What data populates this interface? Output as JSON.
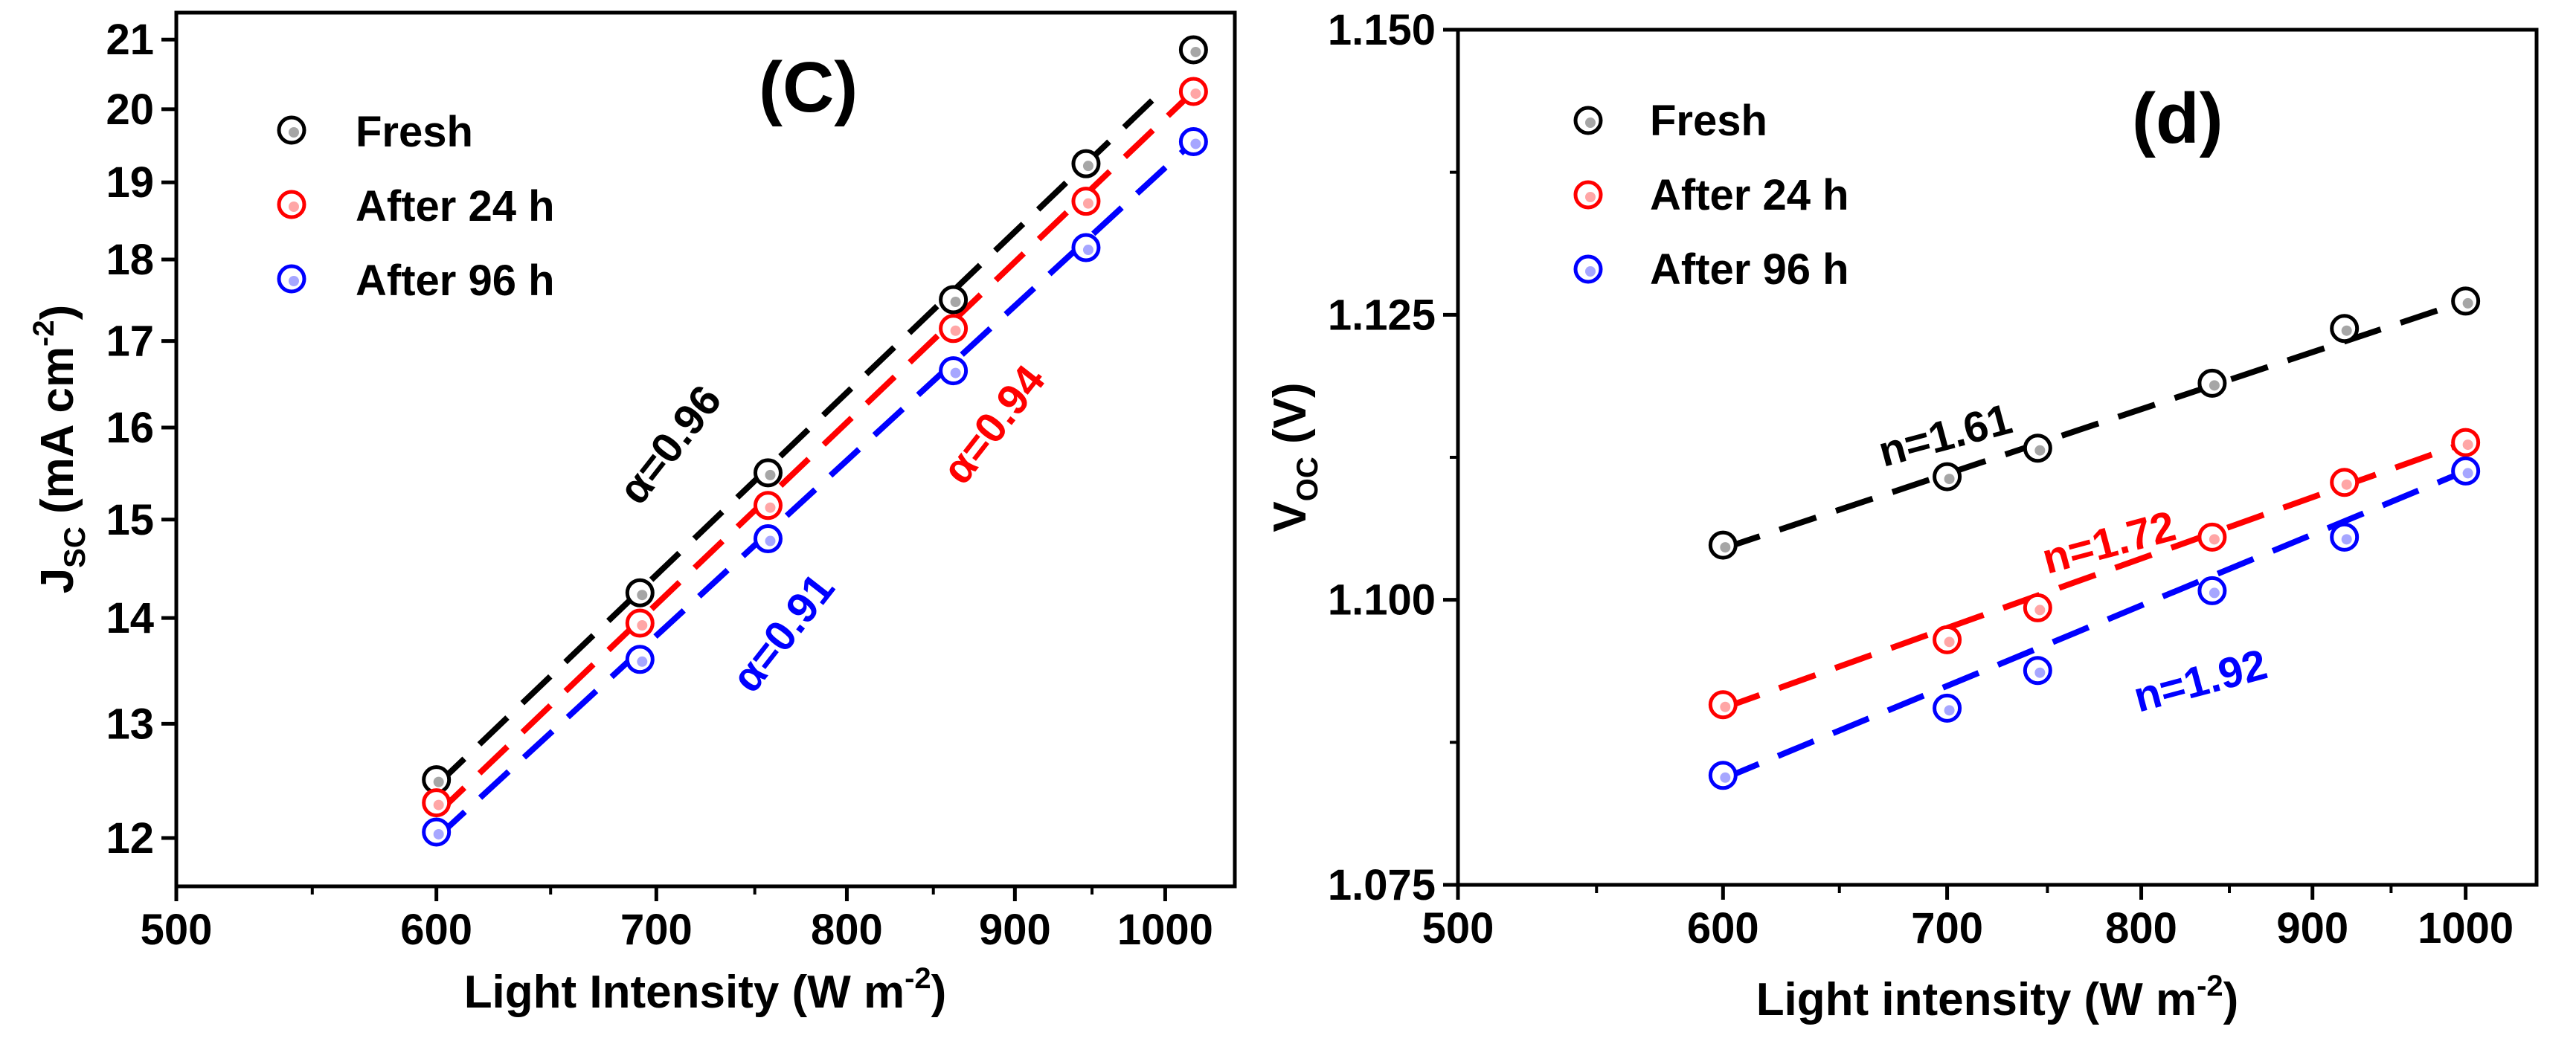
{
  "chart_data": [
    {
      "type": "scatter",
      "panel_label": "(C)",
      "xlabel": {
        "text": "Light Intensity (W m",
        "sup": "-2",
        "tail": ")"
      },
      "ylabel": {
        "main": "J",
        "sub": "SC",
        "text": " (mA cm",
        "sup": "-2",
        "tail": ")"
      },
      "xscale": "log",
      "yscale": "log",
      "xlim": [
        500,
        1050
      ],
      "ylim": [
        11.6,
        21.4
      ],
      "xticks": [
        500,
        600,
        700,
        800,
        900,
        1000
      ],
      "yticks": [
        12,
        13,
        14,
        15,
        16,
        17,
        18,
        19,
        20,
        21
      ],
      "legend_position": "top-left",
      "series": [
        {
          "name": "Fresh",
          "color": "#000000",
          "x": [
            600,
            692,
            757,
            862,
            946,
            1020
          ],
          "y": [
            12.5,
            14.25,
            15.5,
            17.5,
            19.25,
            20.85
          ],
          "fit": {
            "x": [
              600,
              1000
            ],
            "y": [
              12.45,
              20.3
            ]
          }
        },
        {
          "name": "After 24 h",
          "color": "#ff0000",
          "x": [
            600,
            692,
            757,
            862,
            946,
            1020
          ],
          "y": [
            12.3,
            13.95,
            15.15,
            17.15,
            18.75,
            20.25
          ],
          "fit": {
            "x": [
              600,
              1020
            ],
            "y": [
              12.2,
              20.25
            ]
          }
        },
        {
          "name": "After 96 h",
          "color": "#0000ff",
          "x": [
            600,
            692,
            757,
            862,
            946,
            1020
          ],
          "y": [
            12.05,
            13.6,
            14.8,
            16.65,
            18.15,
            19.55
          ],
          "fit": {
            "x": [
              600,
              1020
            ],
            "y": [
              12.0,
              19.55
            ]
          }
        }
      ],
      "annotations": [
        {
          "text": "α=0.96",
          "color": "#000000"
        },
        {
          "text": "α=0.94",
          "color": "#ff0000"
        },
        {
          "text": "α=0.91",
          "color": "#0000ff"
        }
      ]
    },
    {
      "type": "scatter",
      "panel_label": "(d)",
      "xlabel": {
        "text": "Light intensity (W m",
        "sup": "-2",
        "tail": ")"
      },
      "ylabel": {
        "main": "V",
        "sub": "OC",
        "text": " (V)",
        "sup": "",
        "tail": ""
      },
      "xscale": "log",
      "yscale": "linear",
      "xlim": [
        500,
        1050
      ],
      "ylim": [
        1.075,
        1.15
      ],
      "xticks": [
        500,
        600,
        700,
        800,
        900,
        1000
      ],
      "yticks": [
        "1.075",
        "1.100",
        "1.125",
        "1.150"
      ],
      "legend_position": "top-left",
      "series": [
        {
          "name": "Fresh",
          "color": "#000000",
          "x": [
            600,
            700,
            745,
            840,
            920,
            1000
          ],
          "y": [
            1.1048,
            1.1108,
            1.1133,
            1.119,
            1.1238,
            1.1262
          ],
          "fit": {
            "x": [
              600,
              1000
            ],
            "y": [
              1.1045,
              1.1262
            ]
          }
        },
        {
          "name": "After 24 h",
          "color": "#ff0000",
          "x": [
            600,
            700,
            745,
            840,
            920,
            1000
          ],
          "y": [
            1.0908,
            1.0965,
            1.0993,
            1.1055,
            1.1103,
            1.1138
          ],
          "fit": {
            "x": [
              600,
              1000
            ],
            "y": [
              1.0905,
              1.1138
            ]
          }
        },
        {
          "name": "After 96 h",
          "color": "#0000ff",
          "x": [
            600,
            700,
            745,
            840,
            920,
            1000
          ],
          "y": [
            1.0846,
            1.0905,
            1.0938,
            1.1008,
            1.1055,
            1.1113
          ],
          "fit": {
            "x": [
              600,
              1000
            ],
            "y": [
              1.0843,
              1.1113
            ]
          }
        }
      ],
      "annotations": [
        {
          "text": "n=1.61",
          "color": "#000000"
        },
        {
          "text": "n=1.72",
          "color": "#ff0000"
        },
        {
          "text": "n=1.92",
          "color": "#0000ff"
        }
      ]
    }
  ]
}
